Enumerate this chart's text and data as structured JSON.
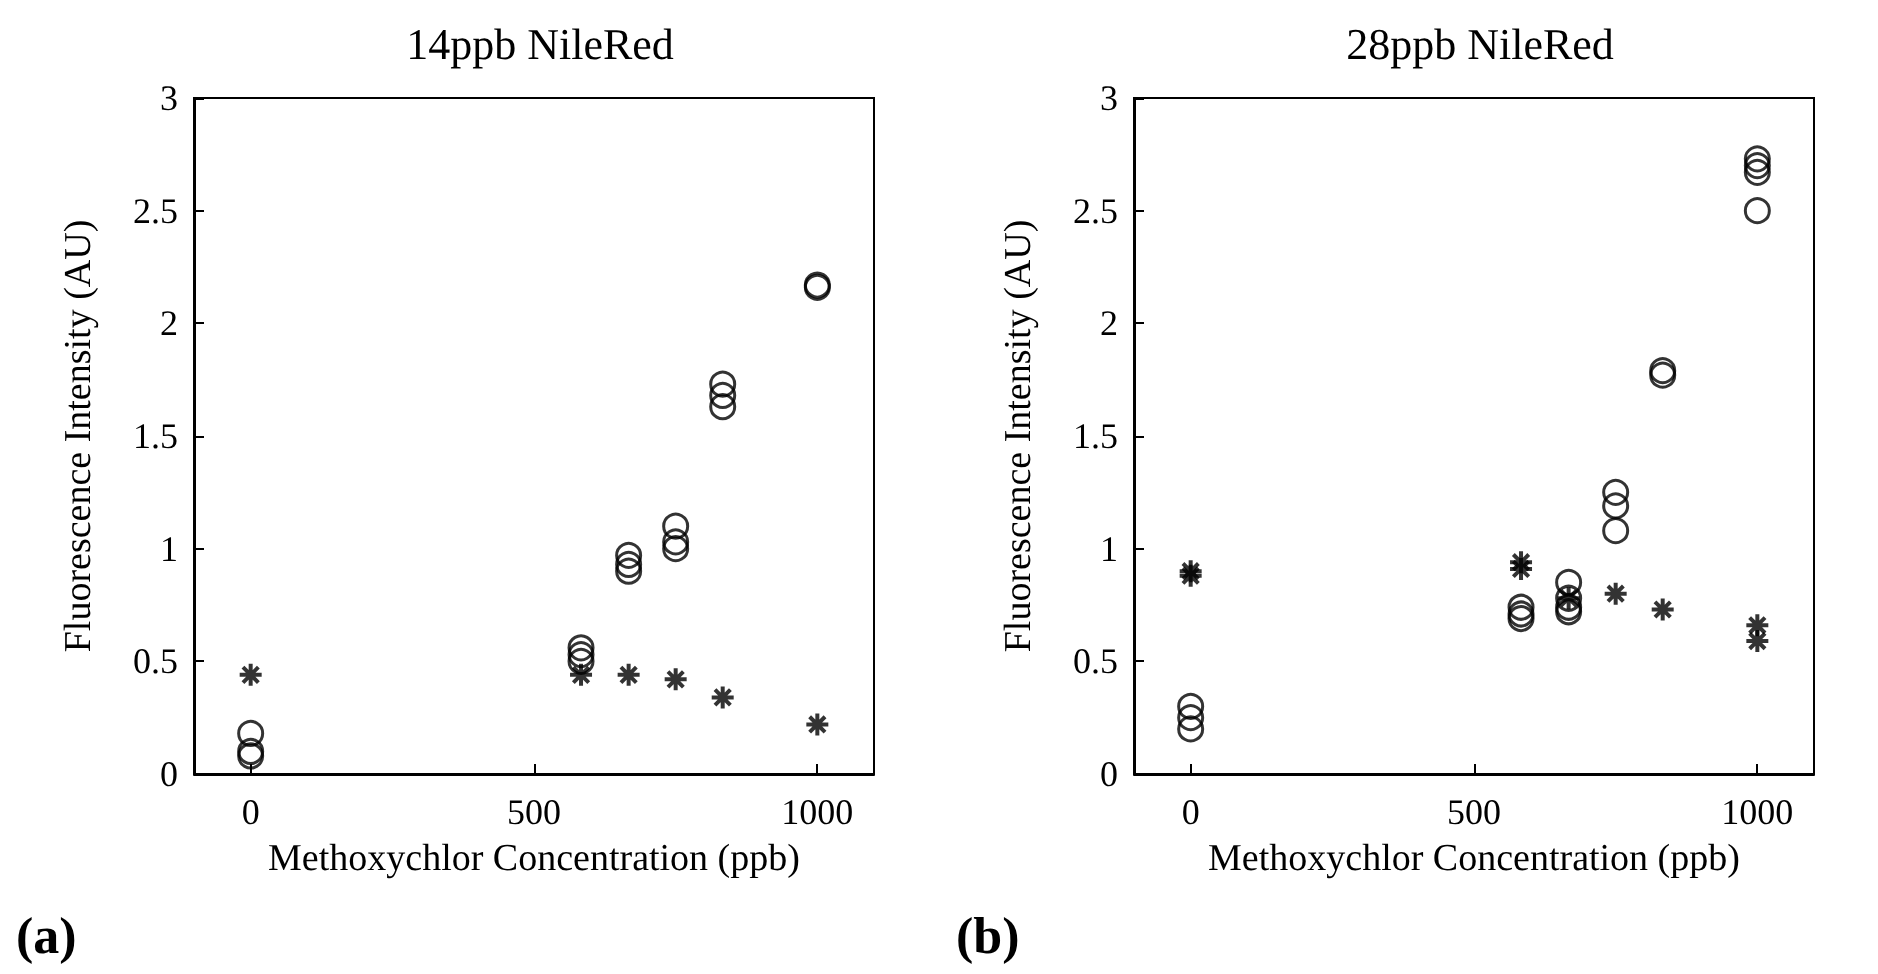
{
  "chart_data": [
    {
      "type": "scatter",
      "title": "14ppb NileRed",
      "xlabel": "Methoxychlor Concentration (ppb)",
      "ylabel": "Fluorescence Intensity (AU)",
      "annotations": [
        "(a)"
      ],
      "xlim": [
        -100,
        1100
      ],
      "xticks": [
        0,
        500,
        1000
      ],
      "ylim": [
        0,
        3
      ],
      "yticks": [
        0,
        0.5,
        1,
        1.5,
        2,
        2.5,
        3
      ],
      "series": [
        {
          "marker": "circle",
          "color": "#000000",
          "x": [
            0,
            0,
            0,
            583,
            583,
            583,
            667,
            667,
            667,
            750,
            750,
            750,
            833,
            833,
            833,
            1000,
            1000
          ],
          "values": [
            0.18,
            0.1,
            0.08,
            0.56,
            0.53,
            0.5,
            0.97,
            0.93,
            0.9,
            1.1,
            1.03,
            1.0,
            1.73,
            1.68,
            1.63,
            2.17,
            2.16
          ]
        },
        {
          "marker": "cross",
          "color": "#000000",
          "x": [
            0,
            583,
            667,
            750,
            833,
            1000
          ],
          "values": [
            0.44,
            0.44,
            0.44,
            0.42,
            0.34,
            0.22
          ]
        }
      ]
    },
    {
      "type": "scatter",
      "title": "28ppb NileRed",
      "xlabel": "Methoxychlor Concentration (ppb)",
      "ylabel": "Fluorescence Intensity (AU)",
      "annotations": [
        "(b)"
      ],
      "xlim": [
        -100,
        1100
      ],
      "xticks": [
        0,
        500,
        1000
      ],
      "ylim": [
        0,
        3
      ],
      "yticks": [
        0,
        0.5,
        1,
        1.5,
        2,
        2.5,
        3
      ],
      "series": [
        {
          "marker": "circle",
          "color": "#000000",
          "x": [
            0,
            0,
            0,
            583,
            583,
            583,
            667,
            667,
            667,
            667,
            750,
            750,
            750,
            833,
            833,
            1000,
            1000,
            1000,
            1000
          ],
          "values": [
            0.3,
            0.25,
            0.2,
            0.74,
            0.71,
            0.69,
            0.85,
            0.78,
            0.74,
            0.72,
            1.25,
            1.19,
            1.08,
            1.79,
            1.77,
            2.73,
            2.7,
            2.67,
            2.5
          ]
        },
        {
          "marker": "cross",
          "color": "#000000",
          "x": [
            0,
            0,
            583,
            583,
            667,
            750,
            833,
            1000,
            1000
          ],
          "values": [
            0.9,
            0.88,
            0.94,
            0.91,
            0.78,
            0.8,
            0.73,
            0.66,
            0.59
          ]
        }
      ]
    }
  ]
}
